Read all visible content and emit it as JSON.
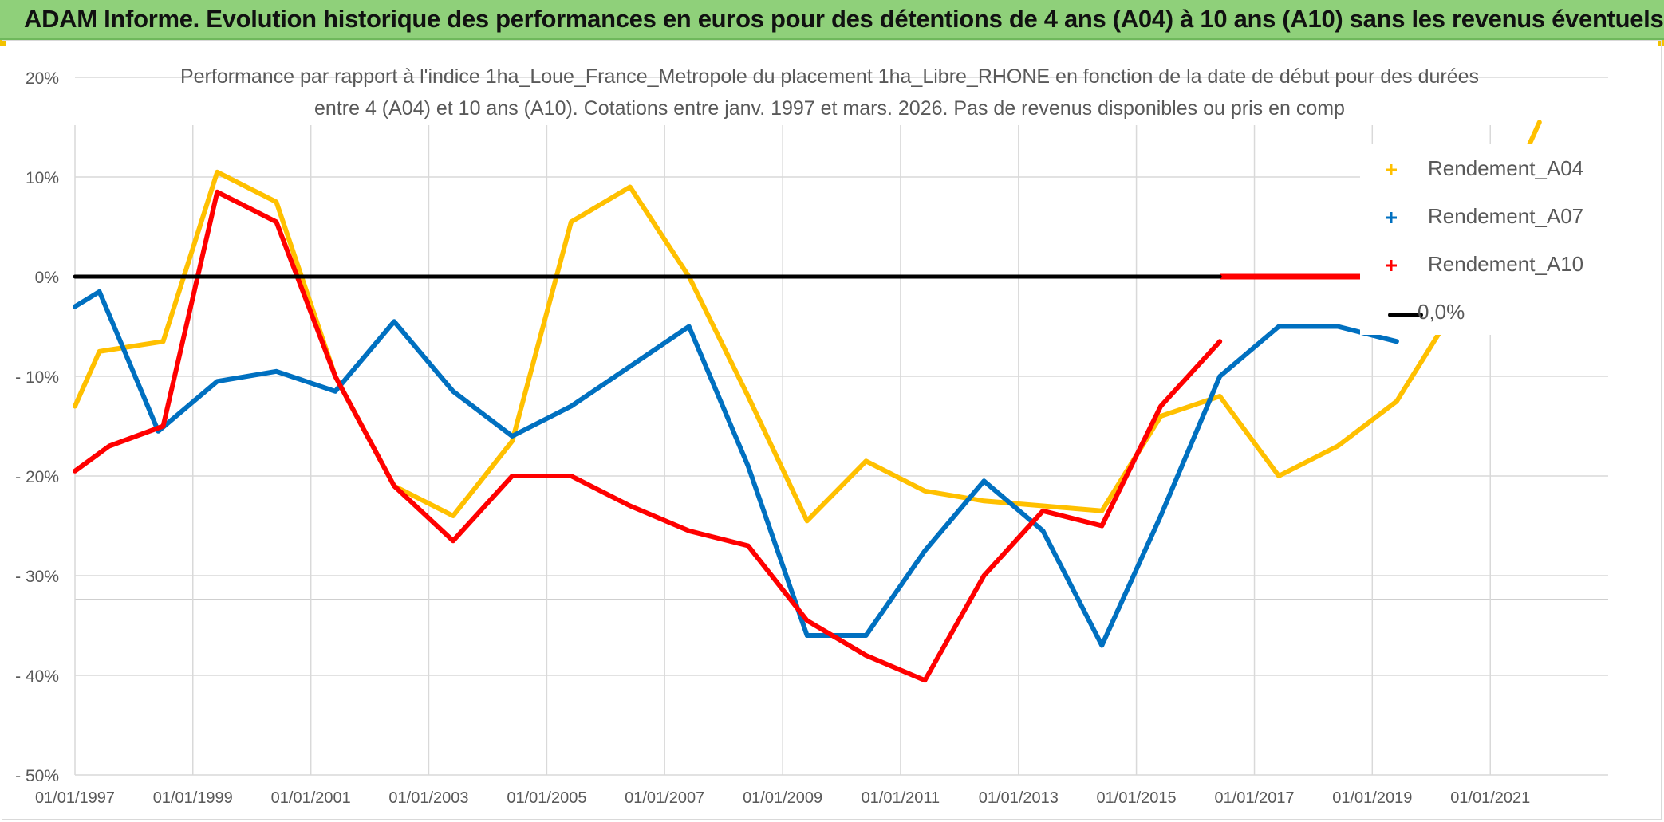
{
  "header": {
    "title": "ADAM Informe. Evolution historique des performances en euros pour des détentions de 4 ans (A04) à 10 ans (A10) sans les revenus éventuels"
  },
  "chart_data": {
    "type": "line",
    "title_line1": "Performance par rapport à l'indice 1ha_Loue_France_Metropole  du placement 1ha_Libre_RHONE en fonction de la date de début pour des durées",
    "title_line2": "entre 4 (A04) et 10 ans (A10). Cotations entre janv. 1997 et mars. 2026. Pas de revenus disponibles ou pris en comp",
    "x_ticks": [
      "01/01/1997",
      "01/01/1999",
      "01/01/2001",
      "01/01/2003",
      "01/01/2005",
      "01/01/2007",
      "01/01/2009",
      "01/01/2011",
      "01/01/2013",
      "01/01/2015",
      "01/01/2017",
      "01/01/2019",
      "01/01/2021"
    ],
    "y_ticks": [
      "20%",
      "10%",
      "0%",
      "- 10%",
      "- 20%",
      "- 30%",
      "- 40%",
      "- 50%"
    ],
    "ylim": [
      -50,
      20
    ],
    "xlim": [
      "1997-01-01",
      "2023-01-01"
    ],
    "grid": true,
    "legend_position": "right",
    "series": [
      {
        "name": "Rendement_A04",
        "color": "#ffc000",
        "points": [
          [
            "1997-01-01",
            -13
          ],
          [
            "1997-06-01",
            -7.5
          ],
          [
            "1998-07-01",
            -6.5
          ],
          [
            "1999-06-01",
            10.5
          ],
          [
            "2000-06-01",
            7.5
          ],
          [
            "2001-06-01",
            -10
          ],
          [
            "2002-06-01",
            -21
          ],
          [
            "2003-06-01",
            -24
          ],
          [
            "2004-06-01",
            -16.5
          ],
          [
            "2005-06-01",
            5.5
          ],
          [
            "2006-06-01",
            9
          ],
          [
            "2007-06-01",
            0
          ],
          [
            "2008-06-01",
            -12
          ],
          [
            "2009-06-01",
            -24.5
          ],
          [
            "2010-06-01",
            -18.5
          ],
          [
            "2011-06-01",
            -21.5
          ],
          [
            "2012-06-01",
            -22.5
          ],
          [
            "2013-06-01",
            -23
          ],
          [
            "2014-06-01",
            -23.5
          ],
          [
            "2015-06-01",
            -14
          ],
          [
            "2016-06-01",
            -12
          ],
          [
            "2017-06-01",
            -20
          ],
          [
            "2018-06-01",
            -17
          ],
          [
            "2019-06-01",
            -12.5
          ],
          [
            "2020-06-01",
            -3
          ],
          [
            "2021-06-01",
            10
          ],
          [
            "2021-11-01",
            15.5
          ]
        ]
      },
      {
        "name": "Rendement_A07",
        "color": "#0070c0",
        "points": [
          [
            "1997-01-01",
            -3
          ],
          [
            "1997-06-01",
            -1.5
          ],
          [
            "1998-06-01",
            -15.5
          ],
          [
            "1999-06-01",
            -10.5
          ],
          [
            "2000-06-01",
            -9.5
          ],
          [
            "2001-06-01",
            -11.5
          ],
          [
            "2002-06-01",
            -4.5
          ],
          [
            "2003-06-01",
            -11.5
          ],
          [
            "2004-06-01",
            -16
          ],
          [
            "2005-06-01",
            -13
          ],
          [
            "2006-06-01",
            -9
          ],
          [
            "2007-06-01",
            -5
          ],
          [
            "2008-06-01",
            -19
          ],
          [
            "2009-06-01",
            -36
          ],
          [
            "2010-06-01",
            -36
          ],
          [
            "2011-06-01",
            -27.5
          ],
          [
            "2012-06-01",
            -20.5
          ],
          [
            "2013-06-01",
            -25.5
          ],
          [
            "2014-06-01",
            -37
          ],
          [
            "2015-06-01",
            -24
          ],
          [
            "2016-06-01",
            -10
          ],
          [
            "2017-06-01",
            -5
          ],
          [
            "2018-06-01",
            -5
          ],
          [
            "2019-06-01",
            -6.5
          ]
        ]
      },
      {
        "name": "Rendement_A10",
        "color": "#ff0000",
        "points": [
          [
            "1997-01-01",
            -19.5
          ],
          [
            "1997-08-01",
            -17
          ],
          [
            "1998-07-01",
            -15
          ],
          [
            "1999-06-01",
            8.5
          ],
          [
            "2000-06-01",
            5.5
          ],
          [
            "2001-06-01",
            -10
          ],
          [
            "2002-06-01",
            -21
          ],
          [
            "2003-06-01",
            -26.5
          ],
          [
            "2004-06-01",
            -20
          ],
          [
            "2005-06-01",
            -20
          ],
          [
            "2006-06-01",
            -23
          ],
          [
            "2007-06-01",
            -25.5
          ],
          [
            "2008-06-01",
            -27
          ],
          [
            "2009-06-01",
            -34.5
          ],
          [
            "2010-06-01",
            -38
          ],
          [
            "2011-06-01",
            -40.5
          ],
          [
            "2012-06-01",
            -30
          ],
          [
            "2013-06-01",
            -23.5
          ],
          [
            "2014-06-01",
            -25
          ],
          [
            "2015-06-01",
            -13
          ],
          [
            "2016-06-01",
            -6.5
          ]
        ],
        "zero_segment": [
          "2016-06-01",
          "2022-06-01"
        ]
      },
      {
        "name": "0,0%",
        "color": "#000000",
        "points": [
          [
            "1997-01-01",
            0
          ],
          [
            "2016-06-01",
            0
          ]
        ]
      }
    ]
  }
}
